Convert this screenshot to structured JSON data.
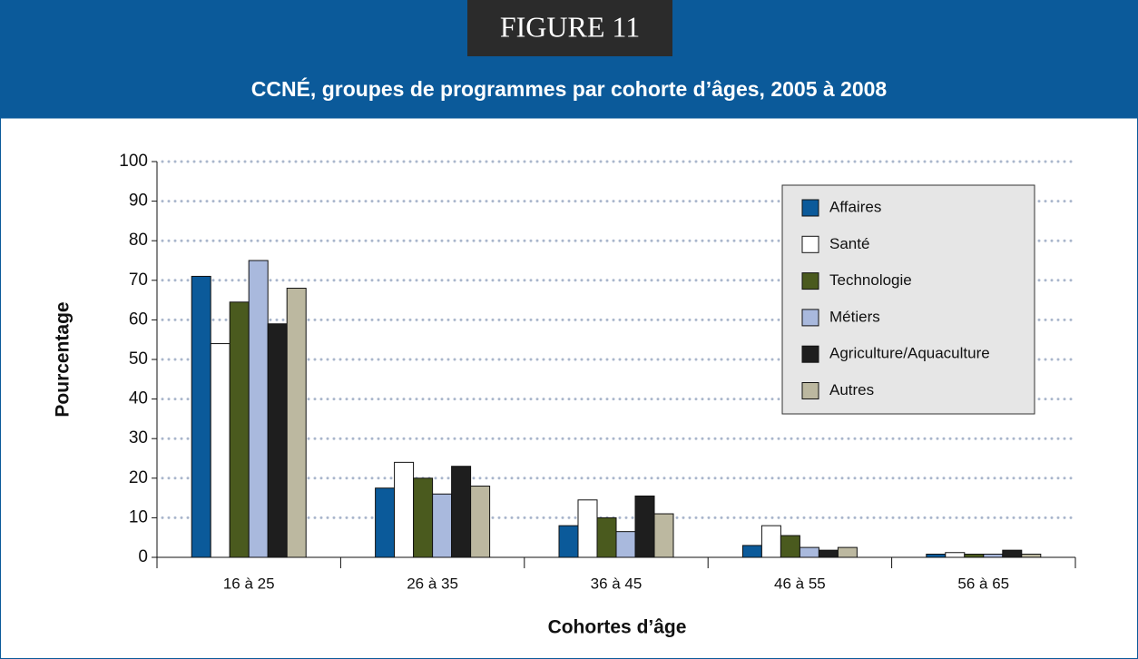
{
  "chart_data": {
    "type": "bar",
    "label": "FIGURE 11",
    "title": "CCNÉ, groupes de programmes par cohorte d’âges, 2005 à 2008",
    "x_label": "Cohortes d’âge",
    "y_label": "Pourcentage",
    "categories": [
      "16 à 25",
      "26 à 35",
      "36 à 45",
      "46 à 55",
      "56 à 65"
    ],
    "series": [
      {
        "name": "Affaires",
        "color": "#0b5a9a",
        "values": [
          71,
          17.5,
          8,
          3,
          0.8
        ]
      },
      {
        "name": "Santé",
        "color": "#ffffff",
        "values": [
          54,
          24,
          14.5,
          8,
          1.2
        ]
      },
      {
        "name": "Technologie",
        "color": "#4a5a1e",
        "values": [
          64.5,
          20,
          10,
          5.5,
          0.8
        ]
      },
      {
        "name": "Métiers",
        "color": "#a9b9dd",
        "values": [
          75,
          16,
          6.5,
          2.5,
          0.8
        ]
      },
      {
        "name": "Agriculture/Aquaculture",
        "color": "#1e1e1e",
        "values": [
          59,
          23,
          15.5,
          1.8,
          1.8
        ]
      },
      {
        "name": "Autres",
        "color": "#bcb8a0",
        "values": [
          68,
          18,
          11,
          2.5,
          0.8
        ]
      }
    ],
    "ylim": [
      0,
      100
    ],
    "yticks": [
      0,
      10,
      20,
      30,
      40,
      50,
      60,
      70,
      80,
      90,
      100
    ],
    "grid": true,
    "legend": "upper right"
  }
}
